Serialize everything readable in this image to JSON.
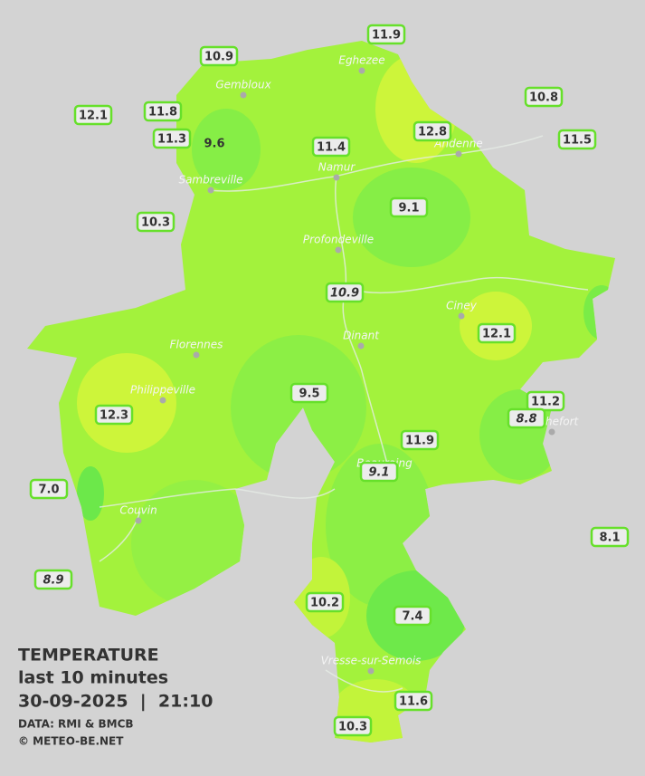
{
  "legend": {
    "title": "TEMPERATURE",
    "subtitle": "last 10 minutes",
    "datetime": "30-09-2025  |  21:10",
    "source": "DATA: RMI & BMCB",
    "copyright": "© METEO-BE.NET"
  },
  "cities": [
    {
      "name": "Gembloux"
    },
    {
      "name": "Eghezee"
    },
    {
      "name": "Andenne"
    },
    {
      "name": "Namur"
    },
    {
      "name": "Sambreville"
    },
    {
      "name": "Profondeville"
    },
    {
      "name": "Ciney"
    },
    {
      "name": "Dinant"
    },
    {
      "name": "Florennes"
    },
    {
      "name": "Philippeville"
    },
    {
      "name": "Rochefort"
    },
    {
      "name": "Beauraing"
    },
    {
      "name": "Couvin"
    },
    {
      "name": "Vresse-sur-Semois"
    }
  ],
  "stations": [
    {
      "label": "10.9"
    },
    {
      "label": "11.9"
    },
    {
      "label": "12.1"
    },
    {
      "label": "11.8"
    },
    {
      "label": "11.3"
    },
    {
      "label": "9.6"
    },
    {
      "label": "11.4"
    },
    {
      "label": "12.8"
    },
    {
      "label": "10.8"
    },
    {
      "label": "11.5"
    },
    {
      "label": "10.3"
    },
    {
      "label": "9.1"
    },
    {
      "label": "10.9",
      "style": "italic"
    },
    {
      "label": "12.1"
    },
    {
      "label": "12.3"
    },
    {
      "label": "9.5"
    },
    {
      "label": "11.2"
    },
    {
      "label": "8.8",
      "style": "italic"
    },
    {
      "label": "11.9"
    },
    {
      "label": "9.1",
      "style": "italic"
    },
    {
      "label": "7.0"
    },
    {
      "label": "8.1"
    },
    {
      "label": "8.9",
      "style": "italic"
    },
    {
      "label": "10.2"
    },
    {
      "label": "7.4"
    },
    {
      "label": "11.6"
    },
    {
      "label": "10.3"
    }
  ]
}
